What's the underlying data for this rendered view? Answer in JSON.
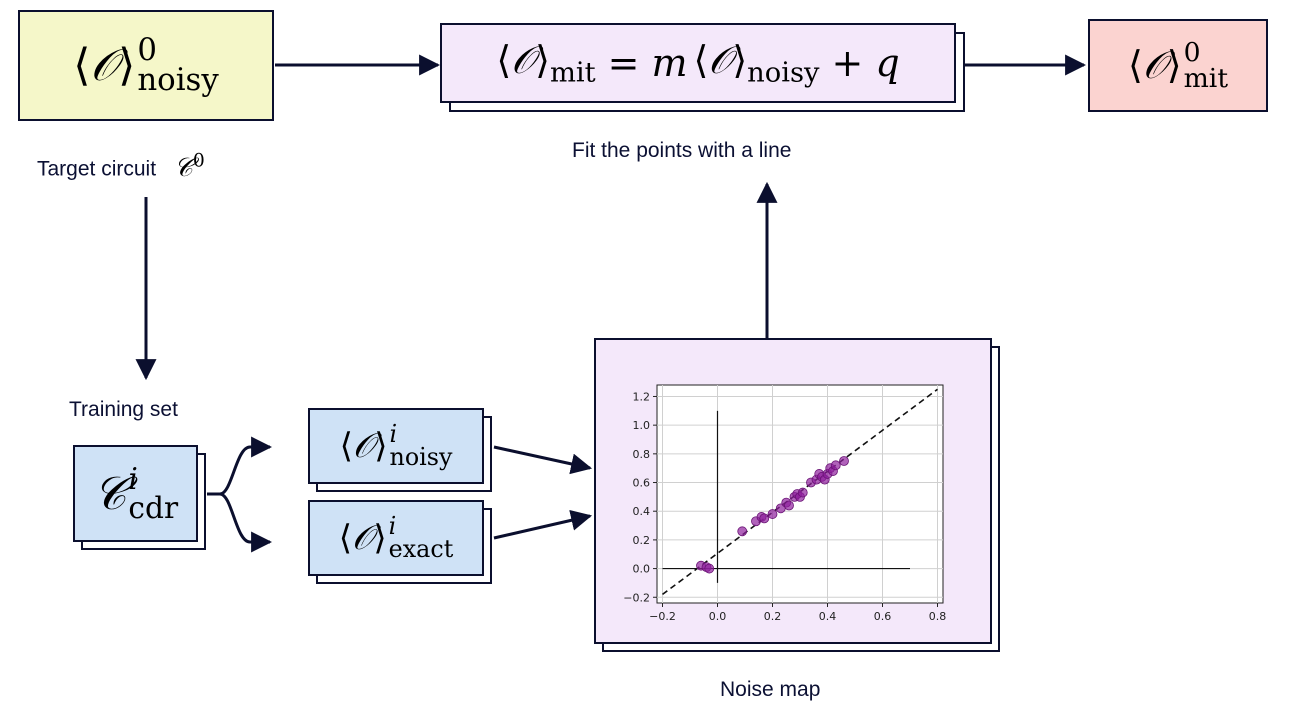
{
  "colors": {
    "yellow": "#f5f7c9",
    "lavender": "#f4e8fa",
    "pink": "#fbd3d0",
    "blue": "#cfe2f6",
    "stroke": "#0b0f2e",
    "points": "#8e1f9c"
  },
  "nodes": {
    "noisy0": {
      "sup": "0",
      "sub": "noisy"
    },
    "fit": {
      "lhs_sub": "mit",
      "eq": "=",
      "m": "m",
      "rhs_sub": "noisy",
      "plus": "+",
      "q": "q"
    },
    "mit0": {
      "sup": "0",
      "sub": "mit"
    },
    "cdr": {
      "sup": "i",
      "sub": "cdr"
    },
    "noisy_i": {
      "sup": "i",
      "sub": "noisy"
    },
    "exact_i": {
      "sup": "i",
      "sub": "exact"
    }
  },
  "labels": {
    "target_circuit": "Target circuit",
    "target_sup": "0",
    "fit_points": "Fit the points with a line",
    "training_set": "Training set",
    "noise_map": "Noise map"
  },
  "chart_data": {
    "type": "scatter",
    "xlim": [
      -0.22,
      0.82
    ],
    "ylim": [
      -0.24,
      1.28
    ],
    "x_ticks": [
      "−0.2",
      "0.0",
      "0.2",
      "0.4",
      "0.6",
      "0.8"
    ],
    "y_ticks": [
      "−0.2",
      "0.0",
      "0.2",
      "0.4",
      "0.6",
      "0.8",
      "1.0",
      "1.2"
    ],
    "grid": true,
    "fit_line": {
      "from": [
        -0.2,
        -0.18
      ],
      "to": [
        0.8,
        1.25
      ],
      "style": "dashed"
    },
    "axes_lines": {
      "h": {
        "y": 0.0,
        "x0": -0.2,
        "x1": 0.7
      },
      "v": {
        "x": 0.0,
        "y0": -0.1,
        "y1": 1.1
      }
    },
    "points": [
      [
        -0.06,
        0.02
      ],
      [
        -0.04,
        0.01
      ],
      [
        -0.03,
        0.0
      ],
      [
        0.09,
        0.26
      ],
      [
        0.14,
        0.33
      ],
      [
        0.16,
        0.36
      ],
      [
        0.17,
        0.35
      ],
      [
        0.2,
        0.38
      ],
      [
        0.23,
        0.42
      ],
      [
        0.25,
        0.46
      ],
      [
        0.26,
        0.44
      ],
      [
        0.28,
        0.5
      ],
      [
        0.29,
        0.52
      ],
      [
        0.3,
        0.5
      ],
      [
        0.31,
        0.53
      ],
      [
        0.34,
        0.6
      ],
      [
        0.36,
        0.62
      ],
      [
        0.37,
        0.66
      ],
      [
        0.38,
        0.64
      ],
      [
        0.39,
        0.62
      ],
      [
        0.4,
        0.66
      ],
      [
        0.41,
        0.7
      ],
      [
        0.42,
        0.68
      ],
      [
        0.43,
        0.72
      ],
      [
        0.46,
        0.75
      ]
    ]
  }
}
